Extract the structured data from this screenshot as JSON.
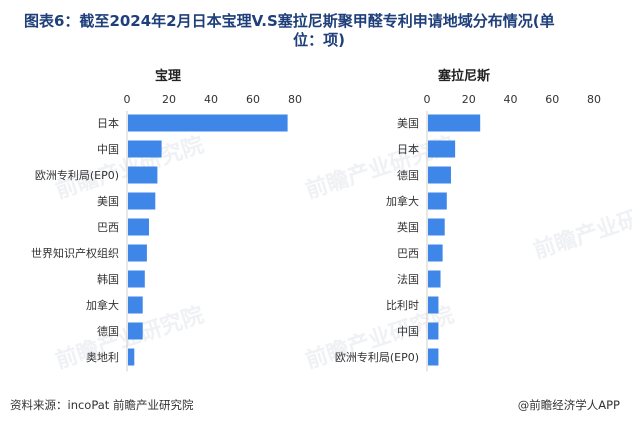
{
  "title": {
    "line1": "图表6：截至2024年2月日本宝理V.S塞拉尼斯聚甲醛专利申请地域分布情况(单",
    "line2": "位：项)"
  },
  "source": "资料来源：incoPat 前瞻产业研究院",
  "brand": "@前瞻经济学人APP",
  "watermark_text": "前瞻产业研究院",
  "colors": {
    "bar": "#3e86e8",
    "title": "#1f3f7a",
    "axis": "#cfcfcf"
  },
  "chart_data": [
    {
      "type": "bar",
      "orientation": "horizontal",
      "title": "宝理",
      "categories": [
        "日本",
        "中国",
        "欧洲专利局(EP0)",
        "美国",
        "巴西",
        "世界知识产权组织",
        "韩国",
        "加拿大",
        "德国",
        "奥地利"
      ],
      "values": [
        76,
        16,
        14,
        13,
        10,
        9,
        8,
        7,
        7,
        3
      ],
      "xticks": [
        0,
        20,
        40,
        60,
        80
      ],
      "xlim": [
        0,
        80
      ],
      "tick_position": "top"
    },
    {
      "type": "bar",
      "orientation": "horizontal",
      "title": "塞拉尼斯",
      "categories": [
        "美国",
        "日本",
        "德国",
        "加拿大",
        "英国",
        "巴西",
        "法国",
        "比利时",
        "中国",
        "欧洲专利局(EP0)"
      ],
      "values": [
        25,
        13,
        11,
        9,
        8,
        7,
        6,
        5,
        5,
        5
      ],
      "xticks": [
        0,
        20,
        40,
        60,
        80
      ],
      "xlim": [
        0,
        80
      ],
      "tick_position": "top"
    }
  ]
}
